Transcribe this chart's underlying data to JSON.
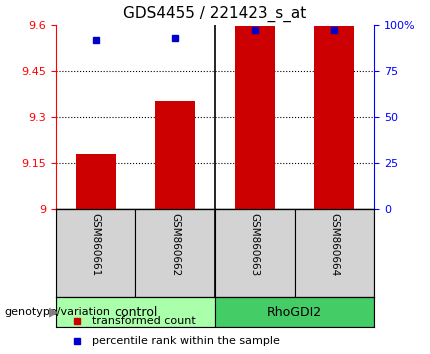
{
  "title": "GDS4455 / 221423_s_at",
  "samples": [
    "GSM860661",
    "GSM860662",
    "GSM860663",
    "GSM860664"
  ],
  "groups": [
    "control",
    "control",
    "RhoGDI2",
    "RhoGDI2"
  ],
  "bar_values": [
    9.18,
    9.35,
    9.595,
    9.595
  ],
  "percentile_values": [
    92,
    93,
    97,
    97
  ],
  "bar_color": "#CC0000",
  "dot_color": "#0000CC",
  "ylim_left": [
    9.0,
    9.6
  ],
  "ylim_right": [
    0,
    100
  ],
  "yticks_left": [
    9.0,
    9.15,
    9.3,
    9.45,
    9.6
  ],
  "ytick_labels_left": [
    "9",
    "9.15",
    "9.3",
    "9.45",
    "9.6"
  ],
  "yticks_right": [
    0,
    25,
    50,
    75,
    100
  ],
  "ytick_labels_right": [
    "0",
    "25",
    "50",
    "75",
    "100%"
  ],
  "hgrid_values": [
    9.15,
    9.3,
    9.45
  ],
  "bar_width": 0.5,
  "group_label": "genotype/variation",
  "legend_items": [
    "transformed count",
    "percentile rank within the sample"
  ],
  "legend_colors": [
    "#CC0000",
    "#0000CC"
  ],
  "title_fontsize": 11,
  "tick_fontsize": 8,
  "control_color": "#AAFFAA",
  "rhogdi2_color": "#44CC66"
}
